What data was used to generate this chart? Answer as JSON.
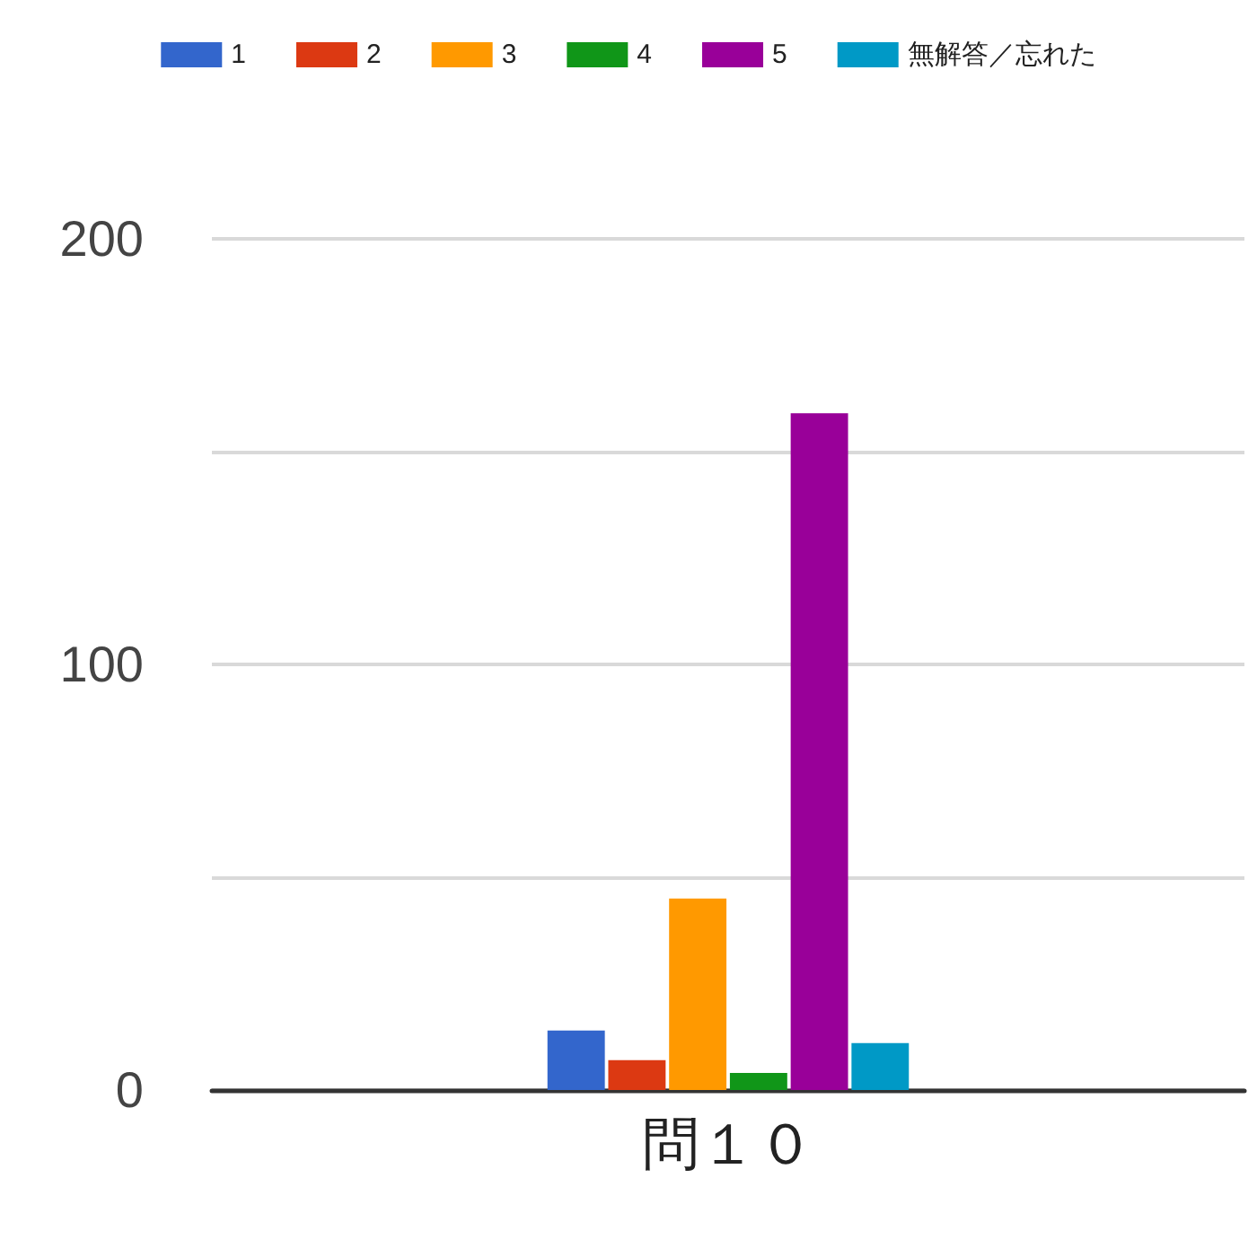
{
  "chart_data": {
    "type": "bar",
    "categories": [
      "問１０"
    ],
    "series": [
      {
        "name": "1",
        "color": "#3366cc",
        "values": [
          14
        ]
      },
      {
        "name": "2",
        "color": "#dc3912",
        "values": [
          7
        ]
      },
      {
        "name": "3",
        "color": "#ff9900",
        "values": [
          45
        ]
      },
      {
        "name": "4",
        "color": "#109618",
        "values": [
          4
        ]
      },
      {
        "name": "5",
        "color": "#990099",
        "values": [
          159
        ]
      },
      {
        "name": "無解答／忘れた",
        "color": "#0099c6",
        "values": [
          11
        ]
      }
    ],
    "ylim": [
      0,
      200
    ],
    "yticks": [
      0,
      {
        "value": 50,
        "label": null
      },
      100,
      {
        "value": 150,
        "label": null
      },
      200
    ],
    "grid": "y",
    "legend": "top"
  }
}
